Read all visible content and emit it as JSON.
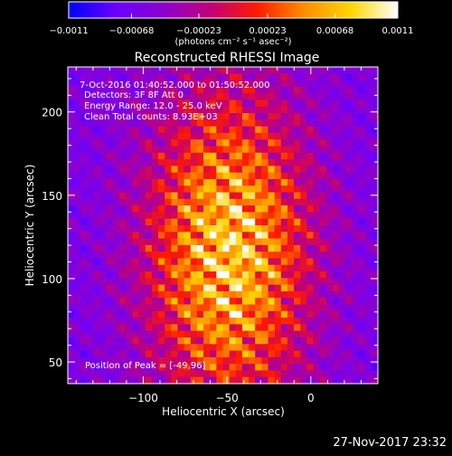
{
  "chart_data": {
    "type": "heatmap",
    "title": "Reconstructed RHESSI Image",
    "xlabel": "Heliocentric X (arcsec)",
    "ylabel": "Heliocentric Y (arcsec)",
    "xlim": [
      -145,
      40
    ],
    "ylim": [
      37,
      227
    ],
    "x_ticks": [
      -100,
      -50,
      0
    ],
    "x_tick_labels": [
      "−100",
      "−50",
      "0"
    ],
    "y_ticks": [
      50,
      100,
      150,
      200
    ],
    "y_tick_labels": [
      "50",
      "100",
      "150",
      "200"
    ],
    "annotations": [
      "7-Oct-2016 01:40:52.000 to 01:50:52.000",
      "Detectors: 3F 8F  Att 0",
      "Energy Range: 12.0 - 25.0 keV",
      "Clean     Total counts: 8.93E+03"
    ],
    "peak_label": "Position of Peak = [-49,96]",
    "peak": [
      -49,
      96
    ],
    "colorbar": {
      "min": -0.0011,
      "max": 0.0011,
      "ticks": [
        -0.0011,
        -0.00068,
        -0.00023,
        0.00023,
        0.00068,
        0.0011
      ],
      "tick_labels": [
        "−0.0011",
        "−0.00068",
        "−0.00023",
        "0.00023",
        "0.00068",
        "0.0011"
      ],
      "units_label": "(photons cm⁻² s⁻¹ asec⁻²)"
    },
    "colors": {
      "background": "#000000",
      "colorbar_stops": [
        "#0000ff",
        "#6a00ff",
        "#8c00d0",
        "#c0007a",
        "#ff1a00",
        "#ff8c00",
        "#ffd500",
        "#ffffff"
      ]
    }
  },
  "footer": {
    "date": "27-Nov-2017 23:32"
  }
}
